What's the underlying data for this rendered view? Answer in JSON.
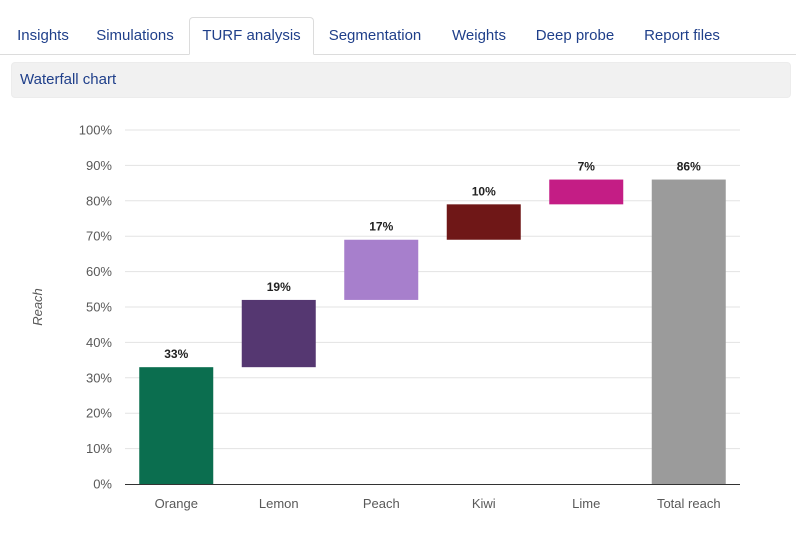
{
  "tabs": [
    {
      "label": "Insights",
      "active": false
    },
    {
      "label": "Simulations",
      "active": false
    },
    {
      "label": "TURF analysis",
      "active": true
    },
    {
      "label": "Segmentation",
      "active": false
    },
    {
      "label": "Weights",
      "active": false
    },
    {
      "label": "Deep probe",
      "active": false
    },
    {
      "label": "Report files",
      "active": false
    }
  ],
  "panel": {
    "title": "Waterfall chart"
  },
  "chart_data": {
    "type": "bar",
    "subtype": "waterfall",
    "categories": [
      "Orange",
      "Lemon",
      "Peach",
      "Kiwi",
      "Lime",
      "Total reach"
    ],
    "values": [
      33,
      19,
      17,
      10,
      7,
      86
    ],
    "data_labels": [
      "33%",
      "19%",
      "17%",
      "10%",
      "7%",
      "86%"
    ],
    "bar_start": [
      0,
      33,
      52,
      69,
      79,
      0
    ],
    "bar_end": [
      33,
      52,
      69,
      79,
      86,
      86
    ],
    "colors": [
      "#0b6e4f",
      "#553771",
      "#a77fcc",
      "#6f1717",
      "#c41d85",
      "#9b9b9b"
    ],
    "ylabel": "Reach",
    "ylim": [
      0,
      100
    ],
    "yticks": [
      "0%",
      "10%",
      "20%",
      "30%",
      "40%",
      "50%",
      "60%",
      "70%",
      "80%",
      "90%",
      "100%"
    ],
    "grid": true,
    "legend": "none"
  }
}
